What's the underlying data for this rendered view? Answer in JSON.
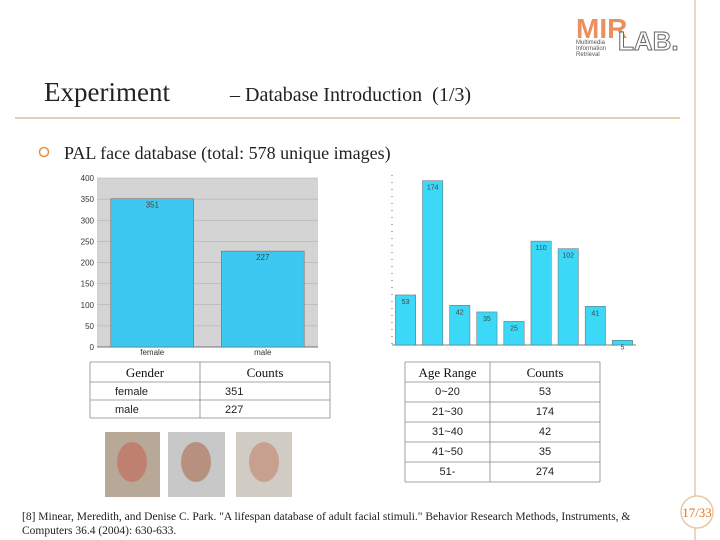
{
  "logo": {
    "mark": "MIR",
    "lab": "LAB.",
    "lines": [
      "Multimedia",
      "Information",
      "Retrieval"
    ]
  },
  "header": {
    "title_main": "Experiment",
    "title_rest": "– Database Introduction  (1/3)"
  },
  "bullet": "PAL face database (total: 578 unique images)",
  "chart_data": [
    {
      "type": "bar",
      "categories": [
        "female",
        "male"
      ],
      "values": [
        351,
        227
      ],
      "color": "#3cc8f0",
      "ylim": [
        0,
        400
      ],
      "yticks": [
        0,
        50,
        100,
        150,
        200,
        250,
        300,
        350,
        400
      ],
      "grid": true
    },
    {
      "type": "bar",
      "categories": [
        null,
        null,
        null,
        null,
        null,
        null,
        null,
        null,
        null
      ],
      "values": [
        53,
        174,
        42,
        35,
        25,
        110,
        102,
        41,
        5
      ],
      "color": "#3cd8f8",
      "ylim": [
        0,
        180
      ],
      "grid": false
    }
  ],
  "tables": [
    {
      "columns": [
        "Gender",
        "Counts"
      ],
      "rows": [
        [
          "female",
          351
        ],
        [
          "male",
          227
        ]
      ]
    },
    {
      "columns": [
        "Age Range",
        "Counts"
      ],
      "rows": [
        [
          "0~20",
          53
        ],
        [
          "21~30",
          174
        ],
        [
          "31~40",
          42
        ],
        [
          "41~50",
          35
        ],
        [
          "51-",
          274
        ]
      ]
    }
  ],
  "footnote": [
    "[8] Minear, Meredith, and Denise C. Park. \"A lifespan database of adult facial stimuli.\" Behavior Research Methods, Instruments, &",
    "Computers 36.4 (2004): 630-633."
  ],
  "page_number": "17/33"
}
